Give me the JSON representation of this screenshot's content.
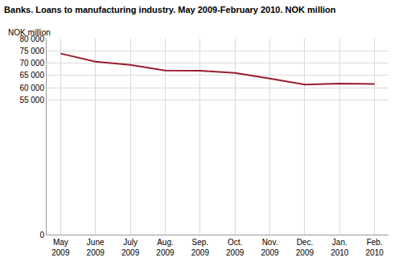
{
  "chart_data": {
    "type": "line",
    "title": "Banks. Loans to manufacturing industry. May 2009-February 2010. NOK million",
    "y_label": "NOK million",
    "categories": [
      "May 2009",
      "June 2009",
      "July 2009",
      "Aug. 2009",
      "Sep. 2009",
      "Oct. 2009",
      "Nov. 2009",
      "Dec. 2009",
      "Jan. 2010",
      "Feb. 2010"
    ],
    "values": [
      73900,
      70600,
      69300,
      67000,
      66900,
      66000,
      63700,
      61200,
      61600,
      61500
    ],
    "color": "#9b1c2e",
    "ylim": [
      0,
      80000
    ],
    "yticks": [
      0,
      {
        "value": 55000,
        "label": "55 000"
      },
      {
        "value": 60000,
        "label": "60 000"
      },
      {
        "value": 65000,
        "label": "65 000"
      },
      {
        "value": 70000,
        "label": "70 000"
      },
      {
        "value": 75000,
        "label": "75 000"
      },
      {
        "value": 80000,
        "label": "80 000"
      }
    ],
    "grid": true
  }
}
